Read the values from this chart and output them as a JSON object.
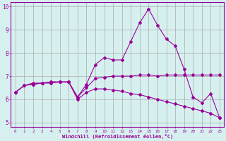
{
  "x": [
    0,
    1,
    2,
    3,
    4,
    5,
    6,
    7,
    8,
    9,
    10,
    11,
    12,
    13,
    14,
    15,
    16,
    17,
    18,
    19,
    20,
    21,
    22,
    23
  ],
  "line1": [
    6.3,
    6.6,
    6.65,
    6.7,
    6.7,
    6.75,
    6.75,
    6.1,
    6.5,
    6.9,
    6.95,
    7.0,
    7.0,
    7.0,
    7.05,
    7.05,
    7.0,
    7.05,
    7.05,
    7.05,
    7.05,
    7.05,
    7.05,
    7.05
  ],
  "line2": [
    6.3,
    6.6,
    6.65,
    6.7,
    6.75,
    6.75,
    6.75,
    6.1,
    6.65,
    7.5,
    7.8,
    7.7,
    7.7,
    8.5,
    9.3,
    9.9,
    9.2,
    8.6,
    8.3,
    7.3,
    6.1,
    5.85,
    6.25,
    5.2
  ],
  "line3": [
    6.3,
    6.6,
    6.7,
    6.7,
    6.75,
    6.75,
    6.75,
    6.0,
    6.3,
    6.45,
    6.45,
    6.4,
    6.35,
    6.25,
    6.2,
    6.1,
    6.0,
    5.9,
    5.8,
    5.7,
    5.6,
    5.5,
    5.4,
    5.2
  ],
  "color": "#990099",
  "bg_color": "#d6f0ef",
  "grid_color": "#aaaaaa",
  "xlabel": "Windchill (Refroidissement éolien,°C)",
  "ylim": [
    4.8,
    10.2
  ],
  "xlim": [
    -0.5,
    23.5
  ],
  "yticks": [
    5,
    6,
    7,
    8,
    9,
    10
  ],
  "xticks": [
    0,
    1,
    2,
    3,
    4,
    5,
    6,
    7,
    8,
    9,
    10,
    11,
    12,
    13,
    14,
    15,
    16,
    17,
    18,
    19,
    20,
    21,
    22,
    23
  ]
}
